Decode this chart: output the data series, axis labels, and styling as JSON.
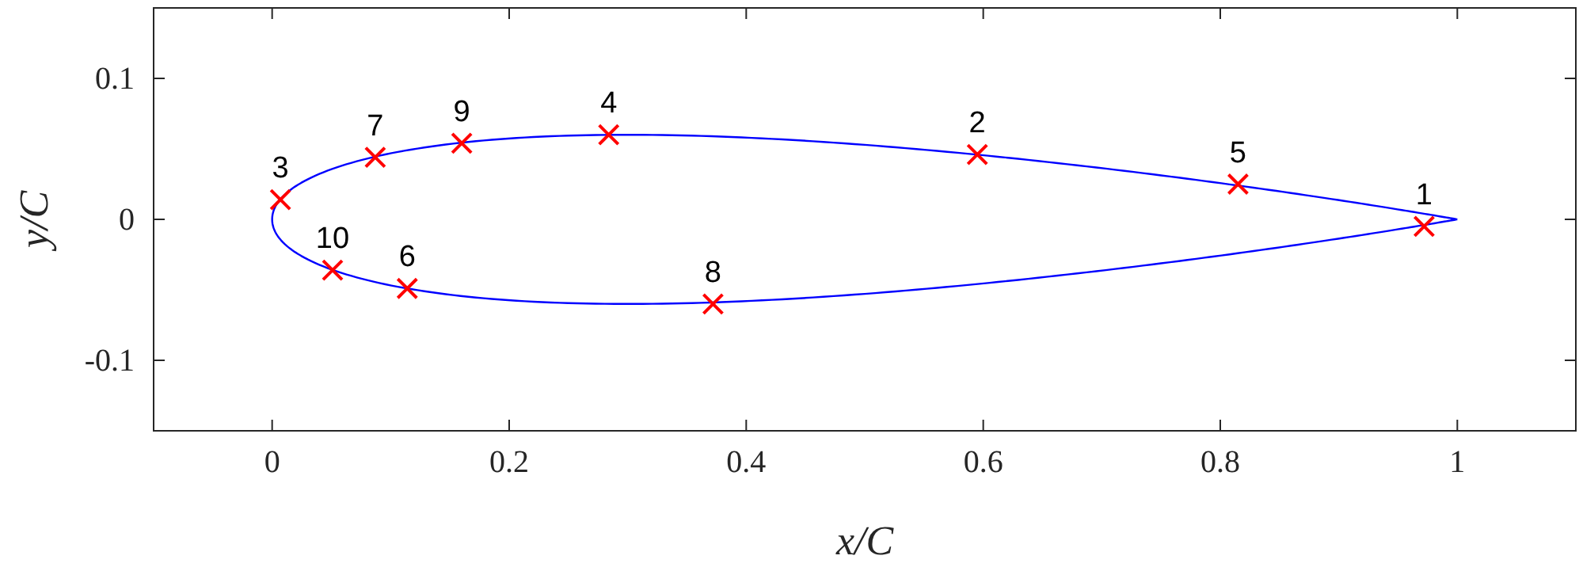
{
  "chart_data": {
    "type": "scatter",
    "xlabel": "x/C",
    "ylabel": "y/C",
    "xlim": [
      -0.1,
      1.1
    ],
    "ylim": [
      -0.15,
      0.15
    ],
    "xticks": [
      0,
      0.2,
      0.4,
      0.6,
      0.8,
      1
    ],
    "yticks": [
      -0.1,
      0,
      0.1
    ],
    "grid": false,
    "series": [
      {
        "color": "#ff0000",
        "marker": "cross",
        "x": [
          0.972,
          0.595,
          0.007,
          0.284,
          0.815,
          0.114,
          0.087,
          0.372,
          0.16,
          0.051
        ],
        "values": [
          -0.005,
          0.046,
          0.014,
          0.06,
          0.025,
          -0.049,
          0.044,
          -0.06,
          0.054,
          -0.036
        ]
      }
    ],
    "annotations": [
      {
        "text": "1",
        "x": 0.972,
        "y": -0.005
      },
      {
        "text": "2",
        "x": 0.595,
        "y": 0.046
      },
      {
        "text": "3",
        "x": 0.007,
        "y": 0.014
      },
      {
        "text": "4",
        "x": 0.284,
        "y": 0.06
      },
      {
        "text": "5",
        "x": 0.815,
        "y": 0.025
      },
      {
        "text": "6",
        "x": 0.114,
        "y": -0.049
      },
      {
        "text": "7",
        "x": 0.087,
        "y": 0.044
      },
      {
        "text": "8",
        "x": 0.372,
        "y": -0.06
      },
      {
        "text": "9",
        "x": 0.16,
        "y": 0.054
      },
      {
        "text": "10",
        "x": 0.051,
        "y": -0.036
      }
    ]
  }
}
